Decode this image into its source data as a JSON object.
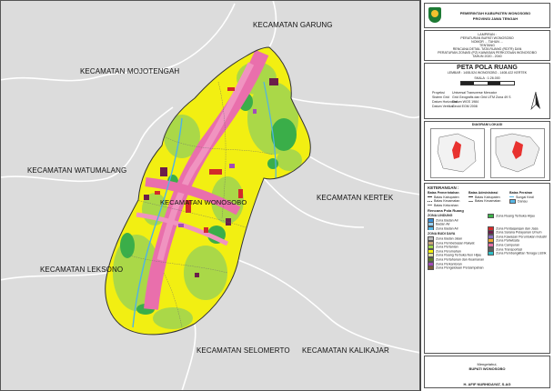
{
  "map": {
    "labels": {
      "garung": "KECAMATAN GARUNG",
      "mojotengah": "KECAMATAN MOJOTENGAH",
      "watumalang": "KECAMATAN WATUMALANG",
      "kertek": "KECAMATAN KERTEK",
      "lekson": "KECAMATAN LEKSONO",
      "selomerto": "KECAMATAN SELOMERTO",
      "kalikajar": "KECAMATAN KALIKAJAR",
      "wonosobo": "KECAMATAN WONOSOBO"
    }
  },
  "panel": {
    "header": {
      "line1": "PEMERINTAH KABUPATEN WONOSOBO",
      "line2": "PROVINSI JAWA TENGAH"
    },
    "lampiran": {
      "l1": "LAMPIRAN :",
      "l2": "PERATURAN BUPATI WONOSOBO",
      "l3": "NOMOR ... TAHUN ...",
      "l4": "TENTANG",
      "l5": "RENCANA DETAIL TATA RUANG (RDTR) DAN",
      "l6": "PERATURAN ZONASI (PZ) KAWASAN PERKOTAAN WONOSOBO",
      "l7": "TAHUN 2020 - 2040"
    },
    "map_title": "PETA POLA RUANG",
    "sheet": "LEMBAR : 1408-524 WONOSOBO - 1408-422 KERTEK",
    "scale": "SKALA : 1:26.000",
    "projection": {
      "k1": "Proyeksi",
      "v1": "Universal Transverse Mercator",
      "k2": "Sistem Grid",
      "v2": "Grid Geografis dan Grid UTM Zona 49 S",
      "k3": "Datum Horizontal",
      "v3": "Datum WGS 1984",
      "k4": "Datum Vertikal",
      "v4": "Geoid EGM 2008"
    },
    "index_title": "DIAGRAM LOKASI",
    "legend": {
      "title": "KETERANGAN :",
      "batas_pemerintahan": "Batas Pemerintahan",
      "batas_administrasi": "Batas Administrasi",
      "batas_perairan": "Batas Perairan",
      "b1": "Batas Kabupaten",
      "b2": "Batas Kecamatan",
      "b3": "Batas Kelurahan",
      "a1": "Batas Kabupaten",
      "a2": "Batas Kecamatan",
      "p1": "Sungai Kecil",
      "p2": "Danau",
      "rencana": "Rencana Pola Ruang",
      "zona_lindung": "ZONA LINDUNG",
      "z1": "Zona Badan Air",
      "z1a": "Badan Air",
      "z2": "Zona Badan Air",
      "z3": "Zona Ruang Terbuka Hijau",
      "zona_budidaya": "ZONA BUDI DAYA",
      "c1": "Zona Badan Jalan",
      "c2": "Zona Pembebasan Rakyat",
      "c3": "Zona Pertanian",
      "c4": "Zona Perumahan",
      "c5": "Zona Ruang Terbuka Non Hijau",
      "c6": "Zona Pertahanan dan Keamanan",
      "c7": "Zona Perkantoran",
      "c8": "Zona Pengelolaan Persampahan",
      "d1": "Zona Perdagangan dan Jasa",
      "d2": "Zona Sarana Pelayanan Umum",
      "d3": "Zona Kawasan Peruntukan Industri",
      "d4": "Zona Pariwisata",
      "d5": "Zona Campuran",
      "d6": "Zona Transportasi",
      "d7": "Zona Pembangkitan Tenaga Listrik"
    },
    "signature": {
      "place": "Mengetahui,",
      "title": "BUPATI WONOSOBO",
      "name": "H. AFIF NURHIDAYAT, S.AG"
    },
    "colors": {
      "kuning": "#f5f20a",
      "hijau_muda": "#9fd84a",
      "hijau": "#3db34a",
      "pink": "#e76fa8",
      "merah": "#d62a2a",
      "ungu": "#a24ab8",
      "jingga": "#f0a830",
      "abu": "#dcdcdc",
      "biru": "#57b7e6"
    }
  }
}
